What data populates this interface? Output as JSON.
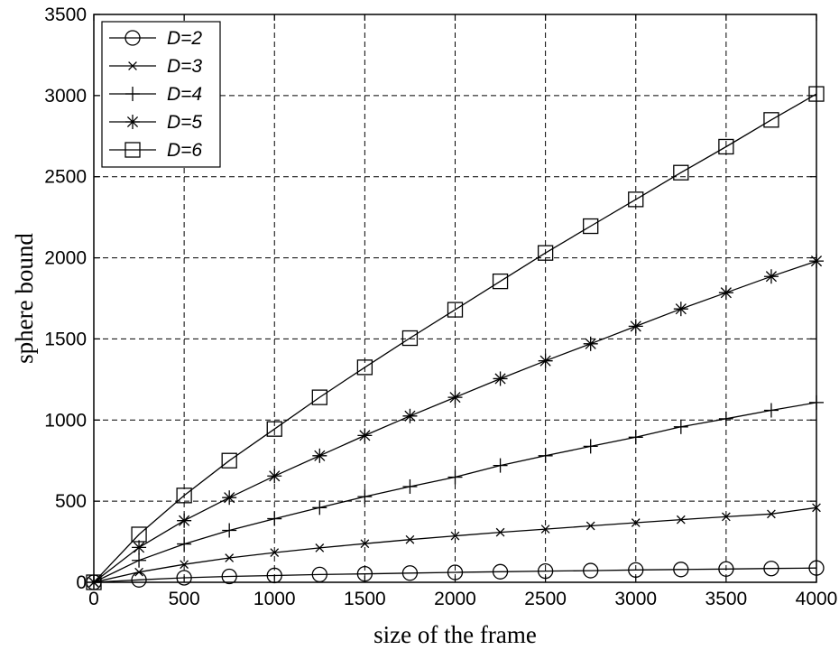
{
  "chart_data": {
    "type": "line",
    "title": "",
    "xlabel": "size of the frame",
    "ylabel": "sphere bound",
    "xlim": [
      0,
      4000
    ],
    "ylim": [
      0,
      3500
    ],
    "x_ticks": [
      0,
      500,
      1000,
      1500,
      2000,
      2500,
      3000,
      3500,
      4000
    ],
    "y_ticks": [
      0,
      500,
      1000,
      1500,
      2000,
      2500,
      3000,
      3500
    ],
    "grid": true,
    "legend_position": "top-left",
    "x": [
      0,
      250,
      500,
      750,
      1000,
      1250,
      1500,
      1750,
      2000,
      2250,
      2500,
      2750,
      3000,
      3250,
      3500,
      3750,
      4000
    ],
    "series": [
      {
        "name": "D=2",
        "marker": "circle",
        "values": [
          0,
          15,
          28,
          36,
          42,
          48,
          52,
          57,
          61,
          65,
          69,
          72,
          76,
          79,
          82,
          85,
          88
        ]
      },
      {
        "name": "D=3",
        "marker": "x",
        "values": [
          0,
          63,
          110,
          150,
          183,
          212,
          238,
          263,
          286,
          308,
          328,
          348,
          367,
          386,
          404,
          421,
          460
        ]
      },
      {
        "name": "D=4",
        "marker": "plus",
        "values": [
          0,
          135,
          236,
          320,
          392,
          460,
          528,
          590,
          648,
          720,
          780,
          838,
          894,
          958,
          1008,
          1060,
          1108
        ]
      },
      {
        "name": "D=5",
        "marker": "star",
        "values": [
          0,
          215,
          380,
          522,
          655,
          780,
          905,
          1025,
          1140,
          1255,
          1365,
          1470,
          1578,
          1685,
          1785,
          1885,
          1980
        ]
      },
      {
        "name": "D=6",
        "marker": "square",
        "values": [
          0,
          295,
          535,
          750,
          945,
          1140,
          1325,
          1505,
          1680,
          1855,
          2030,
          2195,
          2360,
          2525,
          2685,
          2850,
          3010
        ]
      }
    ]
  }
}
